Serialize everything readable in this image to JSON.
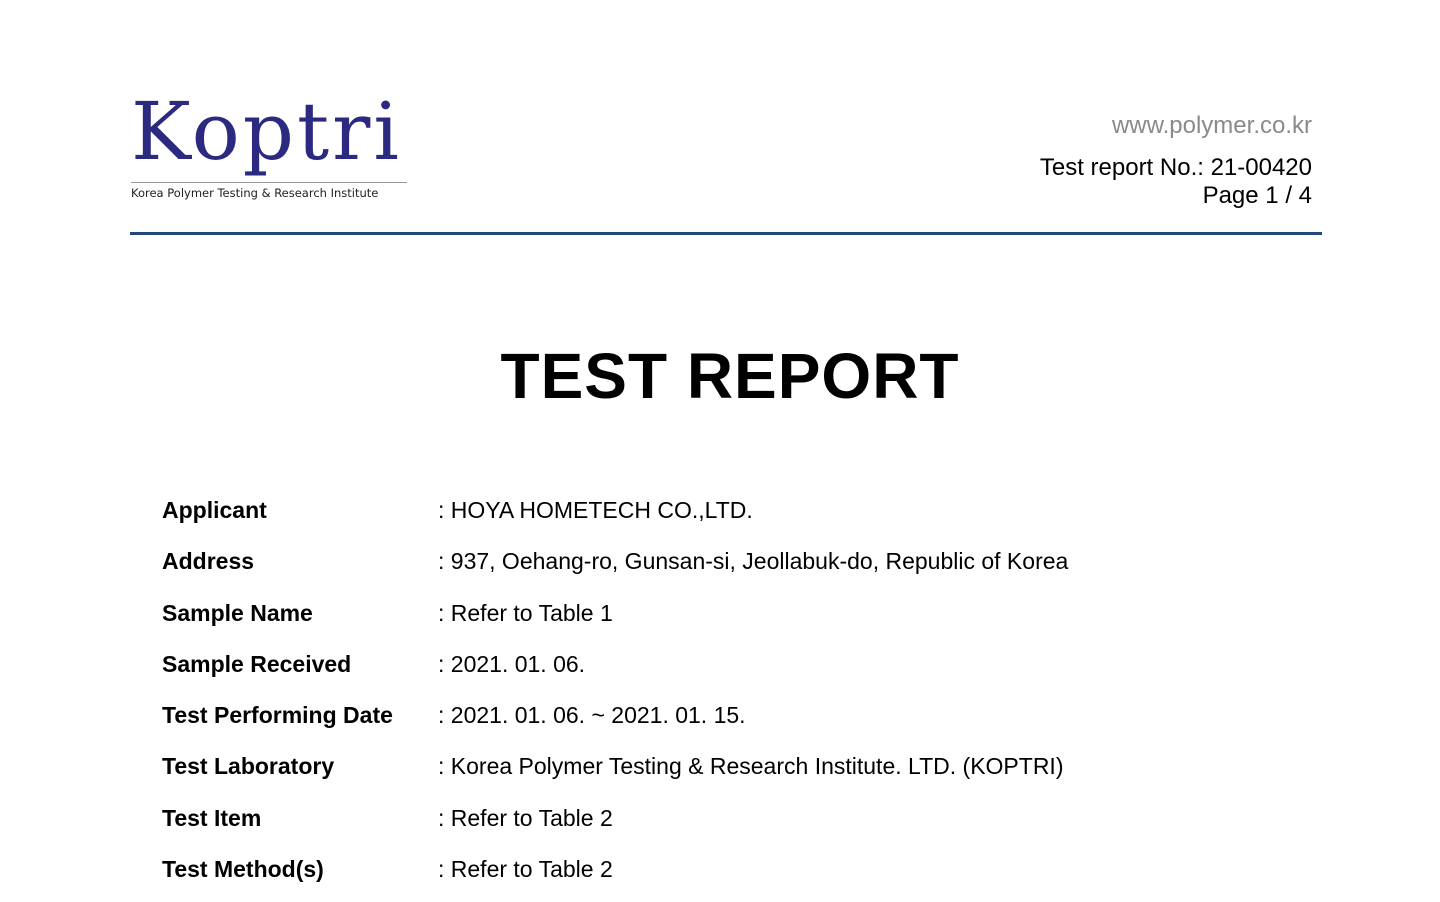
{
  "logo": {
    "wordmark": "Koptri",
    "subtitle": "Korea Polymer Testing & Research Institute",
    "color": "#2b2a80"
  },
  "header": {
    "url": "www.polymer.co.kr",
    "report_no": "Test report No.: 21-00420",
    "page": "Page 1 / 4",
    "rule_color": "#24487a"
  },
  "title": "TEST REPORT",
  "fields": [
    {
      "label": "Applicant",
      "value": ": HOYA HOMETECH CO.,LTD."
    },
    {
      "label": "Address",
      "value": ": 937, Oehang-ro, Gunsan-si, Jeollabuk-do, Republic of Korea"
    },
    {
      "label": "Sample Name",
      "value": ": Refer to Table 1"
    },
    {
      "label": "Sample Received",
      "value": ": 2021. 01. 06."
    },
    {
      "label": "Test Performing Date",
      "value": ": 2021. 01. 06. ~ 2021. 01. 15."
    },
    {
      "label": "Test Laboratory",
      "value": ": Korea Polymer Testing & Research Institute. LTD. (KOPTRI)"
    },
    {
      "label": "Test Item",
      "value": ": Refer to Table 2"
    },
    {
      "label": "Test Method(s)",
      "value": ": Refer to Table 2"
    }
  ]
}
